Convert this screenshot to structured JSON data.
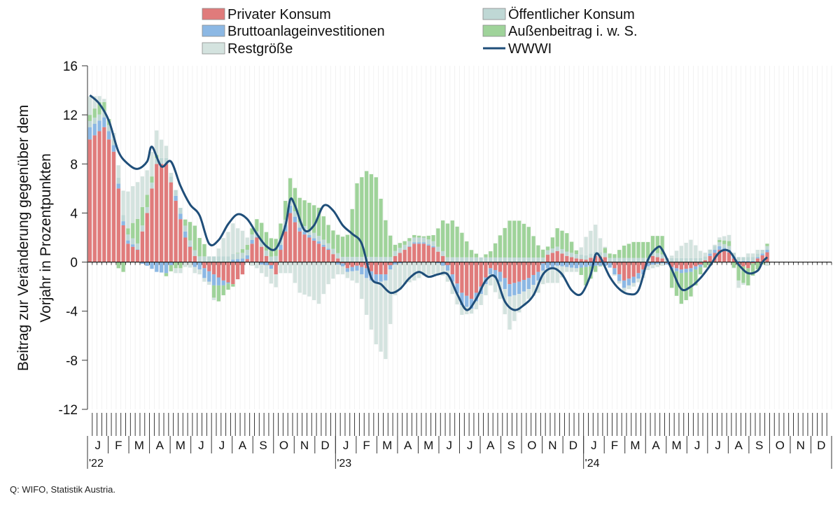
{
  "source_note": "Q: WIFO, Statistik Austria.",
  "chart_data": {
    "type": "bar",
    "stacked": true,
    "ylabel": [
      "Beitrag zur Veränderung gegenüber dem",
      "Vorjahr in Prozentpunkten"
    ],
    "ylim": [
      -12,
      16
    ],
    "yticks": [
      16,
      12,
      8,
      4,
      0,
      -4,
      -8,
      -12
    ],
    "ytick_labels": [
      "16",
      "12",
      "8",
      "4",
      "0",
      "-4",
      "-8",
      "-12"
    ],
    "x_unit": "week",
    "x_start": "2022-01",
    "n_weeks": 156,
    "month_labels": [
      "J",
      "F",
      "M",
      "A",
      "M",
      "J",
      "J",
      "A",
      "S",
      "O",
      "N",
      "D",
      "J",
      "F",
      "M",
      "A",
      "M",
      "J",
      "J",
      "A",
      "S",
      "O",
      "N",
      "D",
      "J",
      "F",
      "M",
      "A",
      "M",
      "J",
      "J",
      "A",
      "S",
      "O",
      "N",
      "D"
    ],
    "year_labels": [
      {
        "label": "'22",
        "month_index": 0
      },
      {
        "label": "'23",
        "month_index": 12
      },
      {
        "label": "'24",
        "month_index": 24
      }
    ],
    "legend_position": "top",
    "legend": [
      {
        "name": "Privater Konsum",
        "kind": "bar"
      },
      {
        "name": "Öffentlicher Konsum",
        "kind": "bar"
      },
      {
        "name": "Bruttoanlageinvestitionen",
        "kind": "bar"
      },
      {
        "name": "Außenbeitrag i. w. S.",
        "kind": "bar"
      },
      {
        "name": "Restgröße",
        "kind": "bar"
      },
      {
        "name": "WWWI",
        "kind": "line"
      }
    ],
    "colors": {
      "privater_konsum": "#e07b7b",
      "oeffentlicher_konsum": "#bfd8d5",
      "bruttoanlageinvestitionen": "#8cb8e4",
      "aussenbeitrag": "#9fd39a",
      "restgroesse": "#d4e3df",
      "wwwi": "#1f4e79"
    },
    "wwwi_anchors": [
      [
        0,
        13.6
      ],
      [
        2,
        12.9
      ],
      [
        4,
        11.5
      ],
      [
        6,
        9.0
      ],
      [
        8,
        8.0
      ],
      [
        10,
        7.6
      ],
      [
        12,
        8.2
      ],
      [
        13,
        9.4
      ],
      [
        15,
        7.8
      ],
      [
        17,
        8.2
      ],
      [
        19,
        6.2
      ],
      [
        21,
        4.7
      ],
      [
        23,
        3.8
      ],
      [
        25,
        1.5
      ],
      [
        27,
        1.8
      ],
      [
        29,
        3.1
      ],
      [
        31,
        3.9
      ],
      [
        33,
        3.5
      ],
      [
        35,
        2.3
      ],
      [
        37,
        1.3
      ],
      [
        39,
        1.1
      ],
      [
        41,
        3.0
      ],
      [
        42,
        5.1
      ],
      [
        43,
        4.6
      ],
      [
        45,
        2.6
      ],
      [
        47,
        3.0
      ],
      [
        49,
        4.6
      ],
      [
        51,
        4.2
      ],
      [
        53,
        3.0
      ],
      [
        55,
        2.3
      ],
      [
        57,
        1.5
      ],
      [
        59,
        -1.3
      ],
      [
        61,
        -1.8
      ],
      [
        63,
        -2.5
      ],
      [
        65,
        -2.2
      ],
      [
        67,
        -1.3
      ],
      [
        69,
        -0.8
      ],
      [
        71,
        -1.2
      ],
      [
        73,
        -1.0
      ],
      [
        75,
        -1.0
      ],
      [
        77,
        -2.6
      ],
      [
        79,
        -3.9
      ],
      [
        81,
        -3.0
      ],
      [
        83,
        -1.5
      ],
      [
        85,
        -1.2
      ],
      [
        87,
        -3.2
      ],
      [
        89,
        -3.9
      ],
      [
        91,
        -3.5
      ],
      [
        93,
        -2.7
      ],
      [
        95,
        -1.0
      ],
      [
        97,
        -0.5
      ],
      [
        99,
        -1.0
      ],
      [
        101,
        -2.3
      ],
      [
        103,
        -2.6
      ],
      [
        105,
        -1.0
      ],
      [
        106,
        0.6
      ],
      [
        107,
        0.4
      ],
      [
        109,
        -1.2
      ],
      [
        111,
        -2.2
      ],
      [
        113,
        -2.6
      ],
      [
        115,
        -2.3
      ],
      [
        117,
        0.2
      ],
      [
        119,
        1.2
      ],
      [
        120,
        1.0
      ],
      [
        122,
        -0.6
      ],
      [
        124,
        -2.2
      ],
      [
        126,
        -2.0
      ],
      [
        128,
        -1.3
      ],
      [
        130,
        -0.3
      ],
      [
        132,
        0.8
      ],
      [
        134,
        0.9
      ],
      [
        136,
        -0.2
      ],
      [
        138,
        -0.9
      ],
      [
        140,
        -0.7
      ],
      [
        141,
        0.0
      ],
      [
        142,
        0.4
      ]
    ],
    "component_anchors": {
      "privater_konsum": [
        [
          0,
          10
        ],
        [
          3,
          11
        ],
        [
          5,
          9
        ],
        [
          7,
          3
        ],
        [
          8,
          1.5
        ],
        [
          10,
          1
        ],
        [
          12,
          4
        ],
        [
          14,
          8
        ],
        [
          16,
          8
        ],
        [
          18,
          5
        ],
        [
          20,
          2
        ],
        [
          22,
          0.5
        ],
        [
          24,
          -0.5
        ],
        [
          26,
          -1
        ],
        [
          28,
          -1.5
        ],
        [
          30,
          -1.8
        ],
        [
          32,
          -1
        ],
        [
          34,
          1.5
        ],
        [
          35,
          2
        ],
        [
          37,
          0.5
        ],
        [
          39,
          -1
        ],
        [
          40,
          1
        ],
        [
          42,
          4
        ],
        [
          44,
          2.5
        ],
        [
          46,
          2
        ],
        [
          48,
          1.5
        ],
        [
          50,
          1
        ],
        [
          52,
          0.3
        ],
        [
          54,
          -0.5
        ],
        [
          56,
          -0.3
        ],
        [
          58,
          -0.5
        ],
        [
          60,
          -1
        ],
        [
          62,
          -1
        ],
        [
          64,
          0.5
        ],
        [
          66,
          1
        ],
        [
          68,
          1.5
        ],
        [
          70,
          1.5
        ],
        [
          72,
          1.2
        ],
        [
          74,
          0.5
        ],
        [
          76,
          -1
        ],
        [
          78,
          -2.5
        ],
        [
          80,
          -3
        ],
        [
          82,
          -2
        ],
        [
          84,
          -0.5
        ],
        [
          86,
          -0.8
        ],
        [
          88,
          -1.8
        ],
        [
          90,
          -1.6
        ],
        [
          92,
          -1.3
        ],
        [
          94,
          -0.8
        ],
        [
          96,
          0.6
        ],
        [
          98,
          0.9
        ],
        [
          100,
          0.5
        ],
        [
          102,
          0.3
        ],
        [
          104,
          0.2
        ],
        [
          106,
          0.5
        ],
        [
          108,
          0.4
        ],
        [
          110,
          -0.5
        ],
        [
          112,
          -1.5
        ],
        [
          114,
          -1.2
        ],
        [
          116,
          -0.6
        ],
        [
          118,
          0.5
        ],
        [
          120,
          0.3
        ],
        [
          122,
          -0.4
        ],
        [
          124,
          -0.6
        ],
        [
          126,
          -0.5
        ],
        [
          128,
          -0.2
        ],
        [
          130,
          0.5
        ],
        [
          132,
          1
        ],
        [
          134,
          0.8
        ],
        [
          136,
          -0.2
        ],
        [
          138,
          -0.5
        ],
        [
          140,
          0.3
        ],
        [
          142,
          0.8
        ]
      ],
      "oeffentlicher_konsum": [
        [
          0,
          0.5
        ],
        [
          142,
          0.3
        ]
      ],
      "bruttoanlageinvestitionen": [
        [
          0,
          1
        ],
        [
          3,
          0.8
        ],
        [
          6,
          0.4
        ],
        [
          9,
          0.2
        ],
        [
          12,
          -0.3
        ],
        [
          14,
          -0.8
        ],
        [
          16,
          -0.9
        ],
        [
          18,
          0.4
        ],
        [
          20,
          0.5
        ],
        [
          22,
          -0.4
        ],
        [
          24,
          -0.8
        ],
        [
          26,
          -0.9
        ],
        [
          28,
          -0.4
        ],
        [
          30,
          0.2
        ],
        [
          32,
          0.3
        ],
        [
          34,
          0.3
        ],
        [
          36,
          -0.2
        ],
        [
          38,
          -0.3
        ],
        [
          40,
          0.4
        ],
        [
          42,
          0.6
        ],
        [
          44,
          0.3
        ],
        [
          46,
          0.2
        ],
        [
          48,
          0.2
        ],
        [
          50,
          0.1
        ],
        [
          52,
          -0.2
        ],
        [
          54,
          -0.3
        ],
        [
          56,
          -0.4
        ],
        [
          58,
          -0.8
        ],
        [
          60,
          -0.7
        ],
        [
          62,
          -0.5
        ],
        [
          64,
          -0.2
        ],
        [
          66,
          0
        ],
        [
          68,
          0.1
        ],
        [
          70,
          0.1
        ],
        [
          72,
          0.1
        ],
        [
          74,
          -0.3
        ],
        [
          76,
          -0.6
        ],
        [
          78,
          -1
        ],
        [
          80,
          -0.8
        ],
        [
          82,
          -0.6
        ],
        [
          84,
          -0.5
        ],
        [
          86,
          -0.8
        ],
        [
          88,
          -1
        ],
        [
          90,
          -1
        ],
        [
          92,
          -0.9
        ],
        [
          94,
          -0.7
        ],
        [
          96,
          -0.5
        ],
        [
          98,
          -0.3
        ],
        [
          100,
          -0.4
        ],
        [
          102,
          -0.5
        ],
        [
          104,
          -0.4
        ],
        [
          106,
          -0.3
        ],
        [
          108,
          -0.3
        ],
        [
          110,
          -0.5
        ],
        [
          112,
          -0.6
        ],
        [
          114,
          -0.5
        ],
        [
          116,
          -0.4
        ],
        [
          118,
          -0.2
        ],
        [
          120,
          -0.1
        ],
        [
          122,
          -0.2
        ],
        [
          124,
          -0.3
        ],
        [
          126,
          -0.3
        ],
        [
          128,
          -0.2
        ],
        [
          130,
          0.2
        ],
        [
          132,
          0.3
        ],
        [
          134,
          0.2
        ],
        [
          136,
          0.1
        ],
        [
          138,
          0.1
        ],
        [
          140,
          0.1
        ],
        [
          142,
          0.2
        ]
      ],
      "aussenbeitrag": [
        [
          0,
          0.5
        ],
        [
          2,
          1
        ],
        [
          4,
          0.5
        ],
        [
          6,
          -0.5
        ],
        [
          7,
          -0.8
        ],
        [
          8,
          0.5
        ],
        [
          10,
          2
        ],
        [
          12,
          1
        ],
        [
          13,
          0.5
        ],
        [
          15,
          0
        ],
        [
          17,
          -0.5
        ],
        [
          19,
          -0.5
        ],
        [
          21,
          1.5
        ],
        [
          22,
          2
        ],
        [
          24,
          1
        ],
        [
          26,
          -1
        ],
        [
          27,
          -1.3
        ],
        [
          28,
          -0.8
        ],
        [
          30,
          -0.2
        ],
        [
          32,
          0.3
        ],
        [
          34,
          0.5
        ],
        [
          36,
          1.5
        ],
        [
          38,
          1.5
        ],
        [
          40,
          1.3
        ],
        [
          42,
          1.8
        ],
        [
          44,
          2
        ],
        [
          46,
          2.2
        ],
        [
          48,
          2.3
        ],
        [
          50,
          1.5
        ],
        [
          52,
          1.5
        ],
        [
          54,
          1.8
        ],
        [
          56,
          6
        ],
        [
          58,
          7
        ],
        [
          60,
          6.5
        ],
        [
          62,
          3
        ],
        [
          64,
          0.5
        ],
        [
          66,
          0.3
        ],
        [
          68,
          0.2
        ],
        [
          70,
          0.1
        ],
        [
          72,
          0.5
        ],
        [
          74,
          2.5
        ],
        [
          76,
          3
        ],
        [
          78,
          2
        ],
        [
          80,
          0.6
        ],
        [
          82,
          0
        ],
        [
          84,
          0.5
        ],
        [
          86,
          1.8
        ],
        [
          88,
          3
        ],
        [
          90,
          3
        ],
        [
          92,
          2.5
        ],
        [
          94,
          1
        ],
        [
          96,
          0.3
        ],
        [
          98,
          1.5
        ],
        [
          100,
          1.5
        ],
        [
          102,
          0.3
        ],
        [
          104,
          -1.5
        ],
        [
          106,
          -0.5
        ],
        [
          108,
          0.4
        ],
        [
          110,
          0.3
        ],
        [
          112,
          1
        ],
        [
          114,
          1.3
        ],
        [
          116,
          1.3
        ],
        [
          118,
          1.3
        ],
        [
          120,
          1.5
        ],
        [
          122,
          -1.5
        ],
        [
          124,
          -2.5
        ],
        [
          126,
          -2
        ],
        [
          128,
          -0.6
        ],
        [
          130,
          -0.3
        ],
        [
          132,
          0.2
        ],
        [
          134,
          0.4
        ],
        [
          136,
          -1.3
        ],
        [
          138,
          -1.4
        ],
        [
          140,
          -0.6
        ],
        [
          142,
          0.2
        ]
      ],
      "restgroesse": [
        [
          0,
          1.5
        ],
        [
          2,
          0.5
        ],
        [
          4,
          0
        ],
        [
          6,
          1
        ],
        [
          8,
          3
        ],
        [
          10,
          3
        ],
        [
          12,
          2
        ],
        [
          14,
          2
        ],
        [
          16,
          1
        ],
        [
          18,
          -0.4
        ],
        [
          20,
          -0.4
        ],
        [
          22,
          -0.5
        ],
        [
          24,
          -0.3
        ],
        [
          26,
          -0.2
        ],
        [
          28,
          1.5
        ],
        [
          30,
          2.5
        ],
        [
          32,
          1.5
        ],
        [
          34,
          -0.3
        ],
        [
          36,
          -0.7
        ],
        [
          38,
          -1.2
        ],
        [
          40,
          -0.9
        ],
        [
          42,
          -0.9
        ],
        [
          44,
          -2.5
        ],
        [
          46,
          -2.8
        ],
        [
          48,
          -3.4
        ],
        [
          50,
          -1.8
        ],
        [
          52,
          -0.8
        ],
        [
          54,
          -0.5
        ],
        [
          56,
          -1
        ],
        [
          58,
          -3
        ],
        [
          60,
          -5
        ],
        [
          62,
          -6.4
        ],
        [
          64,
          -2.5
        ],
        [
          66,
          -1.8
        ],
        [
          68,
          -1.5
        ],
        [
          70,
          -1.1
        ],
        [
          72,
          -1
        ],
        [
          74,
          -0.8
        ],
        [
          76,
          -1
        ],
        [
          78,
          -0.8
        ],
        [
          80,
          -0.4
        ],
        [
          82,
          -0.9
        ],
        [
          84,
          -0.9
        ],
        [
          86,
          -1.4
        ],
        [
          88,
          -2.7
        ],
        [
          90,
          -1.5
        ],
        [
          92,
          -0.8
        ],
        [
          94,
          -1
        ],
        [
          96,
          -1.2
        ],
        [
          98,
          -1.4
        ],
        [
          100,
          -0.4
        ],
        [
          102,
          -0.3
        ],
        [
          104,
          1.5
        ],
        [
          106,
          2.2
        ],
        [
          108,
          0.1
        ],
        [
          110,
          -0.1
        ],
        [
          112,
          -0.3
        ],
        [
          114,
          -0.3
        ],
        [
          116,
          -0.3
        ],
        [
          118,
          -0.3
        ],
        [
          120,
          -0.2
        ],
        [
          122,
          0.2
        ],
        [
          124,
          1
        ],
        [
          126,
          1.5
        ],
        [
          128,
          0.6
        ],
        [
          130,
          0
        ],
        [
          132,
          0.2
        ],
        [
          134,
          0.5
        ],
        [
          136,
          -0.6
        ],
        [
          138,
          0.3
        ],
        [
          140,
          0.3
        ],
        [
          142,
          -0.3
        ]
      ]
    }
  }
}
